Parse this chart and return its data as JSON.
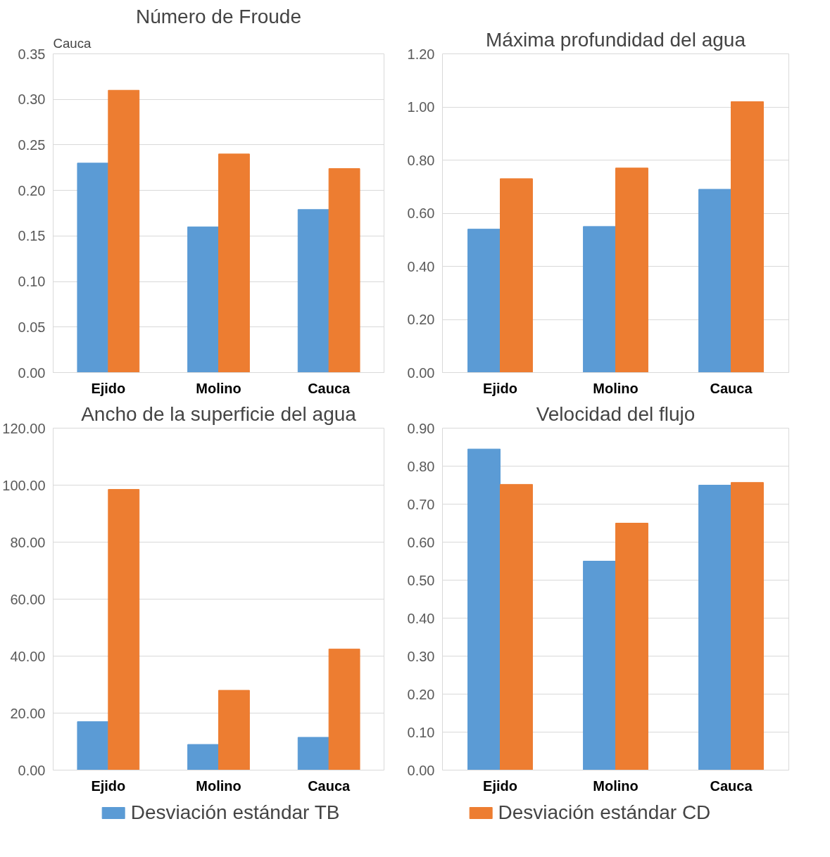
{
  "chart_data": [
    {
      "type": "bar",
      "title": "Número de Froude",
      "annotations": [
        "Cauca"
      ],
      "categories": [
        "Ejido",
        "Molino",
        "Cauca"
      ],
      "series": [
        {
          "name": "Desviación estándar TB",
          "color": "#5b9bd5",
          "values": [
            0.23,
            0.16,
            0.179
          ]
        },
        {
          "name": "Desviación estándar CD",
          "color": "#ed7d31",
          "values": [
            0.31,
            0.24,
            0.224
          ]
        }
      ],
      "ylim": [
        0,
        0.35
      ],
      "yticks": [
        {
          "value": 0,
          "label": "0.00"
        },
        {
          "value": 0.05,
          "label": "0.05"
        },
        {
          "value": 0.1,
          "label": "0.10"
        },
        {
          "value": 0.15,
          "label": "0.15"
        },
        {
          "value": 0.2,
          "label": "0.20"
        },
        {
          "value": 0.25,
          "label": "0.25"
        },
        {
          "value": 0.3,
          "label": "0.30"
        },
        {
          "value": 0.35,
          "label": "0.35"
        }
      ],
      "grid": "y",
      "legend": "bottom"
    },
    {
      "type": "bar",
      "title": "Máxima profundidad del agua",
      "categories": [
        "Ejido",
        "Molino",
        "Cauca"
      ],
      "series": [
        {
          "color": "#5b9bd5",
          "values": [
            0.54,
            0.55,
            0.69
          ]
        },
        {
          "color": "#ed7d31",
          "values": [
            0.73,
            0.77,
            1.02
          ]
        }
      ],
      "ylim": [
        0,
        1.2
      ],
      "yticks": [
        {
          "value": 0,
          "label": "0.00"
        },
        {
          "value": 0.2,
          "label": "0.20"
        },
        {
          "value": 0.4,
          "label": "0.40"
        },
        {
          "value": 0.6,
          "label": "0.60"
        },
        {
          "value": 0.8,
          "label": "0.80"
        },
        {
          "value": 1.0,
          "label": "1.00"
        },
        {
          "value": 1.2,
          "label": "1.20"
        }
      ],
      "grid": "y"
    },
    {
      "type": "bar",
      "title": "Ancho de la superficie del agua",
      "categories": [
        "Ejido",
        "Molino",
        "Cauca"
      ],
      "series": [
        {
          "color": "#5b9bd5",
          "values": [
            17,
            9,
            11.5
          ]
        },
        {
          "color": "#ed7d31",
          "values": [
            98.5,
            28,
            42.5
          ]
        }
      ],
      "ylim": [
        0,
        120
      ],
      "yticks": [
        {
          "value": 0,
          "label": "0.00"
        },
        {
          "value": 20,
          "label": "20.00"
        },
        {
          "value": 40,
          "label": "40.00"
        },
        {
          "value": 60,
          "label": "60.00"
        },
        {
          "value": 80,
          "label": "80.00"
        },
        {
          "value": 100,
          "label": "100.00"
        },
        {
          "value": 120,
          "label": "120.00"
        }
      ],
      "grid": "y"
    },
    {
      "type": "bar",
      "title": "Velocidad del flujo",
      "categories": [
        "Ejido",
        "Molino",
        "Cauca"
      ],
      "series": [
        {
          "color": "#5b9bd5",
          "values": [
            0.845,
            0.55,
            0.75
          ]
        },
        {
          "color": "#ed7d31",
          "values": [
            0.752,
            0.65,
            0.757
          ]
        }
      ],
      "ylim": [
        0,
        0.9
      ],
      "yticks": [
        {
          "value": 0,
          "label": "0.00"
        },
        {
          "value": 0.1,
          "label": "0.10"
        },
        {
          "value": 0.2,
          "label": "0.20"
        },
        {
          "value": 0.3,
          "label": "0.30"
        },
        {
          "value": 0.4,
          "label": "0.40"
        },
        {
          "value": 0.5,
          "label": "0.50"
        },
        {
          "value": 0.6,
          "label": "0.60"
        },
        {
          "value": 0.7,
          "label": "0.70"
        },
        {
          "value": 0.8,
          "label": "0.80"
        },
        {
          "value": 0.9,
          "label": "0.90"
        }
      ],
      "grid": "y"
    }
  ]
}
